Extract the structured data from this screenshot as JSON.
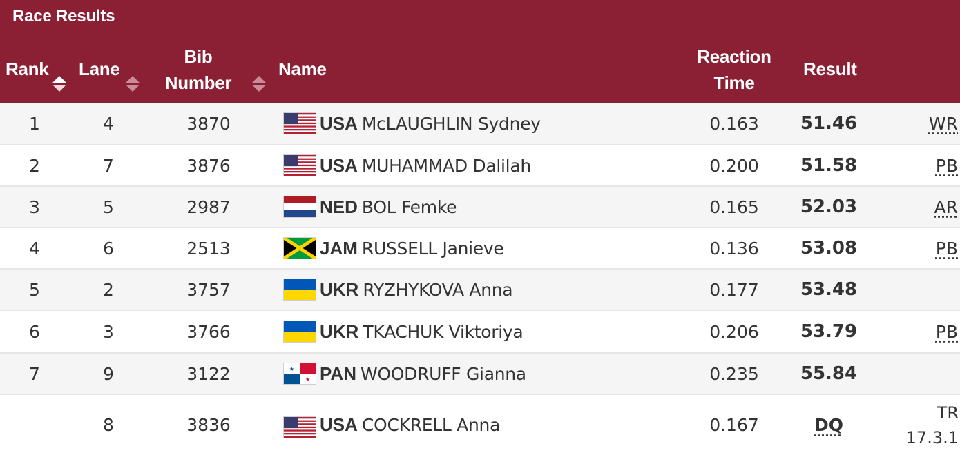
{
  "title": "Race Results",
  "columns": {
    "rank": "Rank",
    "lane": "Lane",
    "bib_line1": "Bib",
    "bib_line2": "Number",
    "name": "Name",
    "reaction_line1": "Reaction",
    "reaction_line2": "Time",
    "result": "Result"
  },
  "rows": [
    {
      "rank": "1",
      "lane": "4",
      "bib": "3870",
      "flag": "usa-flag-icon",
      "noc": "USA",
      "name": "McLAUGHLIN Sydney",
      "reaction": "0.163",
      "result": "51.46",
      "note": "WR"
    },
    {
      "rank": "2",
      "lane": "7",
      "bib": "3876",
      "flag": "usa-flag-icon",
      "noc": "USA",
      "name": "MUHAMMAD Dalilah",
      "reaction": "0.200",
      "result": "51.58",
      "note": "PB"
    },
    {
      "rank": "3",
      "lane": "5",
      "bib": "2987",
      "flag": "ned-flag-icon",
      "noc": "NED",
      "name": "BOL Femke",
      "reaction": "0.165",
      "result": "52.03",
      "note": "AR"
    },
    {
      "rank": "4",
      "lane": "6",
      "bib": "2513",
      "flag": "jam-flag-icon",
      "noc": "JAM",
      "name": "RUSSELL Janieve",
      "reaction": "0.136",
      "result": "53.08",
      "note": "PB"
    },
    {
      "rank": "5",
      "lane": "2",
      "bib": "3757",
      "flag": "ukr-flag-icon",
      "noc": "UKR",
      "name": "RYZHYKOVA Anna",
      "reaction": "0.177",
      "result": "53.48",
      "note": ""
    },
    {
      "rank": "6",
      "lane": "3",
      "bib": "3766",
      "flag": "ukr-flag-icon",
      "noc": "UKR",
      "name": "TKACHUK Viktoriya",
      "reaction": "0.206",
      "result": "53.79",
      "note": "PB"
    },
    {
      "rank": "7",
      "lane": "9",
      "bib": "3122",
      "flag": "pan-flag-icon",
      "noc": "PAN",
      "name": "WOODRUFF Gianna",
      "reaction": "0.235",
      "result": "55.84",
      "note": ""
    },
    {
      "rank": "",
      "lane": "8",
      "bib": "3836",
      "flag": "usa-flag-icon",
      "noc": "USA",
      "name": "COCKRELL Anna",
      "reaction": "0.167",
      "result": "DQ",
      "note_line1": "TR",
      "note_line2": "17.3.1"
    }
  ],
  "colors": {
    "header_bg": "#8b1f33",
    "row_alt_bg": "#f5f5f5",
    "text": "#333333"
  }
}
